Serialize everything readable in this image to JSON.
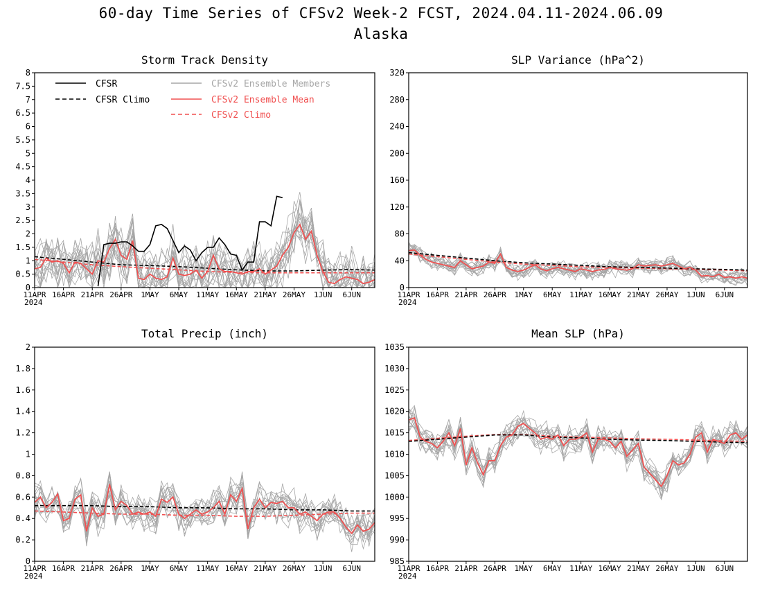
{
  "figure": {
    "title": "60-day Time Series of CFSv2 Week-2 FCST, 2024.04.11-2024.06.09",
    "subtitle": "Alaska"
  },
  "colors": {
    "obs": "#000000",
    "climo_obs": "#000000",
    "member": "#a6a6a6",
    "ens_mean": "#f05050",
    "climo_model": "#f05050"
  },
  "legend": {
    "location": "top-left of Storm Track Density panel",
    "items": [
      {
        "label": "CFSR",
        "style": "solid",
        "color": "#000000"
      },
      {
        "label": "CFSR Climo",
        "style": "dashed",
        "color": "#000000"
      },
      {
        "label": "CFSv2 Ensemble Members",
        "style": "solid",
        "color": "#a6a6a6"
      },
      {
        "label": "CFSv2 Ensemble Mean",
        "style": "solid",
        "color": "#f05050"
      },
      {
        "label": "CFSv2 Climo",
        "style": "dashed",
        "color": "#f05050"
      }
    ]
  },
  "x_ticks": [
    "11APR",
    "16APR",
    "21APR",
    "26APR",
    "1MAY",
    "6MAY",
    "11MAY",
    "16MAY",
    "21MAY",
    "26MAY",
    "1JUN",
    "6JUN"
  ],
  "x_year": "2024",
  "chart_data": [
    {
      "id": "storm",
      "type": "line",
      "title": "Storm Track Density",
      "x_unit": "day",
      "xlim": [
        0,
        59
      ],
      "ylim": [
        0,
        8
      ],
      "yticks": [
        "0",
        "0.5",
        "1",
        "1.5",
        "2",
        "2.5",
        "3",
        "3.5",
        "4",
        "4.5",
        "5",
        "5.5",
        "6",
        "6.5",
        "7",
        "7.5",
        "8"
      ],
      "ytick_values": [
        0,
        0.5,
        1,
        1.5,
        2,
        2.5,
        3,
        3.5,
        4,
        4.5,
        5,
        5.5,
        6,
        6.5,
        7,
        7.5,
        8
      ],
      "legend": true,
      "members": {
        "count": 16,
        "spread": 0.8,
        "seed": 11,
        "min": 0
      },
      "series": [
        {
          "name": "CFSR",
          "role": "obs",
          "x": [
            11,
            12,
            13,
            14,
            15,
            16,
            17,
            18,
            19,
            20,
            21,
            22,
            23,
            24,
            25,
            26,
            27,
            28,
            29,
            30,
            31,
            32,
            33,
            34,
            35,
            36,
            37,
            38,
            39,
            40,
            41,
            42,
            43
          ],
          "values": [
            0.05,
            1.6,
            1.65,
            1.65,
            1.7,
            1.7,
            1.55,
            1.35,
            1.35,
            1.6,
            2.3,
            2.35,
            2.2,
            1.75,
            1.3,
            1.55,
            1.4,
            1.0,
            1.3,
            1.5,
            1.5,
            1.85,
            1.6,
            1.25,
            1.2,
            0.65,
            0.95,
            0.95,
            2.45,
            2.45,
            2.3,
            3.4,
            3.35
          ]
        },
        {
          "name": "CFSR Climo",
          "role": "climo_obs",
          "x": [
            0,
            5,
            10,
            15,
            20,
            25,
            30,
            35,
            40,
            45,
            50,
            55,
            59
          ],
          "values": [
            1.15,
            1.05,
            0.95,
            0.85,
            0.82,
            0.78,
            0.72,
            0.66,
            0.62,
            0.62,
            0.65,
            0.67,
            0.65
          ]
        },
        {
          "name": "CFSv2 Ensemble Mean",
          "role": "ens_mean",
          "x": [
            0,
            1,
            2,
            3,
            4,
            5,
            6,
            7,
            8,
            9,
            10,
            11,
            12,
            13,
            14,
            15,
            16,
            17,
            18,
            19,
            20,
            21,
            22,
            23,
            24,
            25,
            26,
            27,
            28,
            29,
            30,
            31,
            32,
            33,
            34,
            35,
            36,
            37,
            38,
            39,
            40,
            41,
            42,
            43,
            44,
            45,
            46,
            47,
            48,
            49,
            50,
            51,
            52,
            53,
            54,
            55,
            56,
            57,
            58,
            59
          ],
          "values": [
            0.7,
            0.75,
            1.1,
            0.95,
            1.0,
            0.9,
            0.55,
            0.95,
            0.9,
            0.7,
            0.5,
            1.0,
            0.95,
            1.45,
            1.8,
            1.2,
            1.05,
            1.75,
            0.35,
            0.3,
            0.5,
            0.35,
            0.3,
            0.4,
            1.1,
            0.5,
            0.45,
            0.5,
            0.65,
            0.35,
            0.6,
            1.2,
            0.7,
            0.6,
            0.6,
            0.55,
            0.5,
            0.6,
            0.6,
            0.7,
            0.5,
            0.65,
            0.8,
            1.2,
            1.5,
            2.05,
            2.35,
            1.8,
            2.1,
            1.2,
            0.6,
            0.2,
            0.15,
            0.3,
            0.4,
            0.35,
            0.3,
            0.15,
            0.2,
            0.3
          ]
        },
        {
          "name": "CFSv2 Climo",
          "role": "climo_model",
          "x": [
            0,
            5,
            10,
            15,
            20,
            25,
            30,
            35,
            40,
            45,
            50,
            55,
            59
          ],
          "values": [
            1.05,
            0.95,
            0.85,
            0.78,
            0.72,
            0.66,
            0.6,
            0.56,
            0.55,
            0.55,
            0.55,
            0.55,
            0.55
          ]
        }
      ]
    },
    {
      "id": "slpvar",
      "type": "line",
      "title": "SLP Variance (hPa^2)",
      "x_unit": "day",
      "xlim": [
        0,
        59
      ],
      "ylim": [
        0,
        320
      ],
      "yticks": [
        "0",
        "40",
        "80",
        "120",
        "160",
        "200",
        "240",
        "280",
        "320"
      ],
      "ytick_values": [
        0,
        40,
        80,
        120,
        160,
        200,
        240,
        280,
        320
      ],
      "members": {
        "count": 16,
        "spread": 9,
        "seed": 23,
        "min": 0
      },
      "series": [
        {
          "name": "CFSR Climo",
          "role": "climo_obs",
          "x": [
            0,
            5,
            10,
            15,
            20,
            25,
            30,
            35,
            40,
            45,
            50,
            55,
            59
          ],
          "values": [
            52,
            48,
            44,
            40,
            37,
            35,
            33,
            31,
            30,
            29,
            28,
            27,
            26
          ]
        },
        {
          "name": "CFSv2 Ensemble Mean",
          "role": "ens_mean",
          "x": [
            0,
            1,
            2,
            3,
            4,
            5,
            6,
            7,
            8,
            9,
            10,
            11,
            12,
            13,
            14,
            15,
            16,
            17,
            18,
            19,
            20,
            21,
            22,
            23,
            24,
            25,
            26,
            27,
            28,
            29,
            30,
            31,
            32,
            33,
            34,
            35,
            36,
            37,
            38,
            39,
            40,
            41,
            42,
            43,
            44,
            45,
            46,
            47,
            48,
            49,
            50,
            51,
            52,
            53,
            54,
            55,
            56,
            57,
            58,
            59
          ],
          "values": [
            55,
            56,
            48,
            42,
            38,
            36,
            34,
            32,
            30,
            40,
            34,
            28,
            30,
            32,
            38,
            36,
            50,
            30,
            26,
            24,
            26,
            30,
            34,
            28,
            25,
            28,
            30,
            28,
            26,
            24,
            28,
            26,
            24,
            26,
            27,
            30,
            28,
            27,
            26,
            28,
            34,
            32,
            33,
            34,
            32,
            34,
            36,
            32,
            28,
            30,
            26,
            17,
            18,
            16,
            20,
            15,
            16,
            14,
            16,
            14
          ]
        },
        {
          "name": "CFSv2 Climo",
          "role": "climo_model",
          "x": [
            0,
            5,
            10,
            15,
            20,
            25,
            30,
            35,
            40,
            45,
            50,
            55,
            59
          ],
          "values": [
            50,
            46,
            42,
            38,
            35,
            33,
            31,
            30,
            29,
            28,
            27,
            26,
            25
          ]
        }
      ]
    },
    {
      "id": "precip",
      "type": "line",
      "title": "Total Precip (inch)",
      "x_unit": "day",
      "xlim": [
        0,
        59
      ],
      "ylim": [
        0,
        2
      ],
      "yticks": [
        "0",
        "0.2",
        "0.4",
        "0.6",
        "0.8",
        "1",
        "1.2",
        "1.4",
        "1.6",
        "1.8",
        "2"
      ],
      "ytick_values": [
        0,
        0.2,
        0.4,
        0.6,
        0.8,
        1,
        1.2,
        1.4,
        1.6,
        1.8,
        2
      ],
      "members": {
        "count": 16,
        "spread": 0.13,
        "seed": 37,
        "min": 0.05
      },
      "series": [
        {
          "name": "CFSR Climo",
          "role": "climo_obs",
          "x": [
            0,
            5,
            10,
            15,
            20,
            25,
            30,
            35,
            40,
            45,
            50,
            55,
            59
          ],
          "values": [
            0.52,
            0.52,
            0.52,
            0.51,
            0.51,
            0.5,
            0.5,
            0.49,
            0.49,
            0.48,
            0.48,
            0.47,
            0.47
          ]
        },
        {
          "name": "CFSv2 Ensemble Mean",
          "role": "ens_mean",
          "x": [
            0,
            1,
            2,
            3,
            4,
            5,
            6,
            7,
            8,
            9,
            10,
            11,
            12,
            13,
            14,
            15,
            16,
            17,
            18,
            19,
            20,
            21,
            22,
            23,
            24,
            25,
            26,
            27,
            28,
            29,
            30,
            31,
            32,
            33,
            34,
            35,
            36,
            37,
            38,
            39,
            40,
            41,
            42,
            43,
            44,
            45,
            46,
            47,
            48,
            49,
            50,
            51,
            52,
            53,
            54,
            55,
            56,
            57,
            58,
            59
          ],
          "values": [
            0.55,
            0.6,
            0.5,
            0.55,
            0.63,
            0.38,
            0.4,
            0.58,
            0.62,
            0.28,
            0.5,
            0.42,
            0.44,
            0.72,
            0.48,
            0.56,
            0.52,
            0.44,
            0.46,
            0.44,
            0.46,
            0.42,
            0.58,
            0.55,
            0.6,
            0.44,
            0.4,
            0.44,
            0.48,
            0.44,
            0.46,
            0.5,
            0.56,
            0.44,
            0.62,
            0.56,
            0.68,
            0.3,
            0.5,
            0.58,
            0.5,
            0.55,
            0.54,
            0.56,
            0.5,
            0.5,
            0.44,
            0.46,
            0.42,
            0.38,
            0.44,
            0.46,
            0.46,
            0.4,
            0.32,
            0.26,
            0.34,
            0.28,
            0.3,
            0.36
          ]
        },
        {
          "name": "CFSv2 Climo",
          "role": "climo_model",
          "x": [
            0,
            5,
            10,
            15,
            20,
            25,
            30,
            35,
            40,
            45,
            50,
            55,
            59
          ],
          "values": [
            0.47,
            0.46,
            0.45,
            0.44,
            0.44,
            0.43,
            0.43,
            0.42,
            0.42,
            0.43,
            0.44,
            0.45,
            0.45
          ]
        }
      ]
    },
    {
      "id": "mslp",
      "type": "line",
      "title": "Mean SLP (hPa)",
      "x_unit": "day",
      "xlim": [
        0,
        59
      ],
      "ylim": [
        985,
        1035
      ],
      "yticks": [
        "985",
        "990",
        "995",
        "1000",
        "1005",
        "1010",
        "1015",
        "1020",
        "1025",
        "1030",
        "1035"
      ],
      "ytick_values": [
        985,
        990,
        995,
        1000,
        1005,
        1010,
        1015,
        1020,
        1025,
        1030,
        1035
      ],
      "members": {
        "count": 16,
        "spread": 2.6,
        "seed": 53,
        "min": 985
      },
      "series": [
        {
          "name": "CFSR Climo",
          "role": "climo_obs",
          "x": [
            0,
            5,
            10,
            15,
            20,
            25,
            30,
            35,
            40,
            45,
            50,
            55,
            59
          ],
          "values": [
            1013,
            1013.5,
            1014,
            1014.5,
            1014.5,
            1014,
            1013.8,
            1013.5,
            1013.3,
            1013.2,
            1013,
            1012.8,
            1012.7
          ]
        },
        {
          "name": "CFSv2 Ensemble Mean",
          "role": "ens_mean",
          "x": [
            0,
            1,
            2,
            3,
            4,
            5,
            6,
            7,
            8,
            9,
            10,
            11,
            12,
            13,
            14,
            15,
            16,
            17,
            18,
            19,
            20,
            21,
            22,
            23,
            24,
            25,
            26,
            27,
            28,
            29,
            30,
            31,
            32,
            33,
            34,
            35,
            36,
            37,
            38,
            39,
            40,
            41,
            42,
            43,
            44,
            45,
            46,
            47,
            48,
            49,
            50,
            51,
            52,
            53,
            54,
            55,
            56,
            57,
            58,
            59
          ],
          "values": [
            1018,
            1018.5,
            1014,
            1013,
            1012.5,
            1011.5,
            1013,
            1015,
            1012,
            1016,
            1007.5,
            1011.5,
            1008,
            1005.2,
            1008.5,
            1008.5,
            1012,
            1014,
            1014.5,
            1016.5,
            1017.2,
            1016,
            1015,
            1013.5,
            1014,
            1013.5,
            1014.5,
            1012,
            1013.5,
            1013.5,
            1014,
            1015,
            1010.5,
            1013.5,
            1013.5,
            1013,
            1011.5,
            1013,
            1009.5,
            1011,
            1012.5,
            1007,
            1005.5,
            1004,
            1002.5,
            1005,
            1008.5,
            1007.5,
            1008,
            1010,
            1014,
            1015,
            1010.5,
            1013.5,
            1013,
            1012.5,
            1014.5,
            1015,
            1013.5,
            1014.5
          ]
        },
        {
          "name": "CFSv2 Climo",
          "role": "climo_model",
          "x": [
            0,
            5,
            10,
            15,
            20,
            25,
            30,
            35,
            40,
            45,
            50,
            55,
            59
          ],
          "values": [
            1013.2,
            1013.7,
            1014.2,
            1014.6,
            1014.6,
            1014.2,
            1014,
            1013.8,
            1013.6,
            1013.5,
            1013.3,
            1013.1,
            1013
          ]
        }
      ]
    }
  ]
}
